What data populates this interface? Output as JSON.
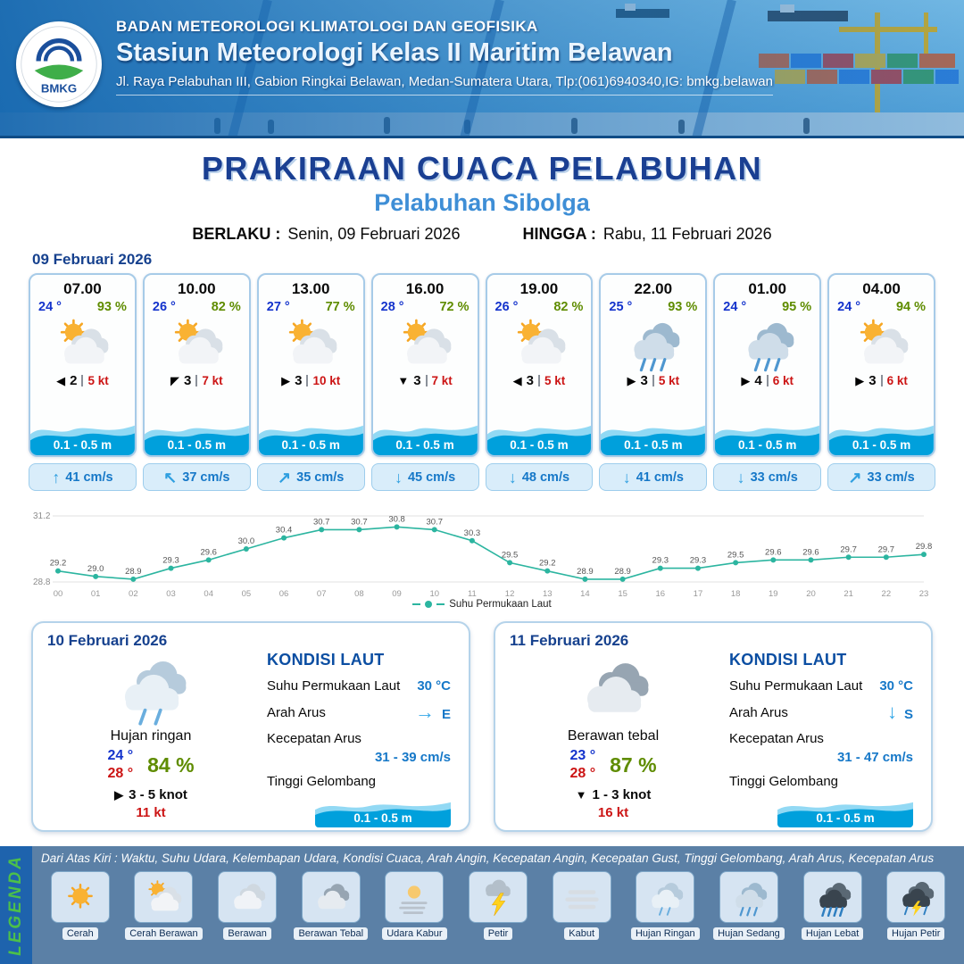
{
  "header": {
    "logo_label": "BMKG",
    "org": "BADAN METEOROLOGI KLIMATOLOGI DAN GEOFISIKA",
    "station": "Stasiun Meteorologi Kelas II Maritim Belawan",
    "address": "Jl. Raya Pelabuhan III, Gabion Ringkai Belawan, Medan-Sumatera Utara, Tlp:(061)6940340,IG: bmkg.belawan"
  },
  "title": {
    "main": "PRAKIRAAN CUACA PELABUHAN",
    "port": "Pelabuhan Sibolga",
    "berlaku_label": "BERLAKU :",
    "berlaku_value": "Senin, 09 Februari 2026",
    "hingga_label": "HINGGA :",
    "hingga_value": "Rabu, 11 Februari 2026"
  },
  "forecast": {
    "date": "09 Februari 2026",
    "cards": [
      {
        "time": "07.00",
        "temp": "24 °",
        "humidity": "93 %",
        "icon": "cerah-berawan",
        "wind_arrow": "◀",
        "wind_speed": "2",
        "gust": "5 kt",
        "wave": "0.1 - 0.5 m",
        "current_arrow": "↑",
        "current": "41 cm/s"
      },
      {
        "time": "10.00",
        "temp": "26 °",
        "humidity": "82 %",
        "icon": "cerah-berawan",
        "wind_arrow": "◤",
        "wind_speed": "3",
        "gust": "7 kt",
        "wave": "0.1 - 0.5 m",
        "current_arrow": "↖",
        "current": "37 cm/s"
      },
      {
        "time": "13.00",
        "temp": "27 °",
        "humidity": "77 %",
        "icon": "cerah-berawan",
        "wind_arrow": "▶",
        "wind_speed": "3",
        "gust": "10 kt",
        "wave": "0.1 - 0.5 m",
        "current_arrow": "↗",
        "current": "35 cm/s"
      },
      {
        "time": "16.00",
        "temp": "28 °",
        "humidity": "72 %",
        "icon": "cerah-berawan",
        "wind_arrow": "▼",
        "wind_speed": "3",
        "gust": "7 kt",
        "wave": "0.1 - 0.5 m",
        "current_arrow": "↓",
        "current": "45 cm/s"
      },
      {
        "time": "19.00",
        "temp": "26 °",
        "humidity": "82 %",
        "icon": "cerah-berawan",
        "wind_arrow": "◀",
        "wind_speed": "3",
        "gust": "5 kt",
        "wave": "0.1 - 0.5 m",
        "current_arrow": "↓",
        "current": "48 cm/s"
      },
      {
        "time": "22.00",
        "temp": "25 °",
        "humidity": "93 %",
        "icon": "hujan-sedang",
        "wind_arrow": "▶",
        "wind_speed": "3",
        "gust": "5 kt",
        "wave": "0.1 - 0.5 m",
        "current_arrow": "↓",
        "current": "41 cm/s"
      },
      {
        "time": "01.00",
        "temp": "24 °",
        "humidity": "95 %",
        "icon": "hujan-sedang",
        "wind_arrow": "▶",
        "wind_speed": "4",
        "gust": "6 kt",
        "wave": "0.1 - 0.5 m",
        "current_arrow": "↓",
        "current": "33 cm/s"
      },
      {
        "time": "04.00",
        "temp": "24 °",
        "humidity": "94 %",
        "icon": "cerah-berawan",
        "wind_arrow": "▶",
        "wind_speed": "3",
        "gust": "6 kt",
        "wave": "0.1 - 0.5 m",
        "current_arrow": "↗",
        "current": "33 cm/s"
      }
    ]
  },
  "chart_data": {
    "type": "line",
    "x": [
      "00",
      "01",
      "02",
      "03",
      "04",
      "05",
      "06",
      "07",
      "08",
      "09",
      "10",
      "11",
      "12",
      "13",
      "14",
      "15",
      "16",
      "17",
      "18",
      "19",
      "20",
      "21",
      "22",
      "23"
    ],
    "series": [
      {
        "name": "Suhu Permukaan Laut",
        "values": [
          29.2,
          29.0,
          28.9,
          29.3,
          29.6,
          30.0,
          30.4,
          30.7,
          30.7,
          30.8,
          30.7,
          30.3,
          29.5,
          29.2,
          28.9,
          28.9,
          29.3,
          29.3,
          29.5,
          29.6,
          29.6,
          29.7,
          29.7,
          29.8
        ]
      }
    ],
    "ylim": [
      28.8,
      31.2
    ],
    "line_color": "#2cb5a0",
    "grid": true,
    "legend_position": "bottom"
  },
  "day_cards": [
    {
      "date": "10 Februari 2026",
      "icon": "hujan-ringan",
      "condition": "Hujan ringan",
      "temp_min": "24 °",
      "temp_max": "28 °",
      "humidity": "84 %",
      "wind_arrow": "▶",
      "wind": "3 - 5 knot",
      "gust": "11 kt",
      "sea": {
        "title": "KONDISI LAUT",
        "sst_label": "Suhu Permukaan Laut",
        "sst": "30 °C",
        "dir_label": "Arah Arus",
        "dir_arrow": "→",
        "dir": "E",
        "speed_label": "Kecepatan Arus",
        "speed": "31 - 39 cm/s",
        "wave_label": "Tinggi Gelombang",
        "wave": "0.1 - 0.5 m"
      }
    },
    {
      "date": "11 Februari 2026",
      "icon": "berawan-tebal",
      "condition": "Berawan tebal",
      "temp_min": "23 °",
      "temp_max": "28 °",
      "humidity": "87 %",
      "wind_arrow": "▼",
      "wind": "1 - 3 knot",
      "gust": "16 kt",
      "sea": {
        "title": "KONDISI LAUT",
        "sst_label": "Suhu Permukaan Laut",
        "sst": "30 °C",
        "dir_label": "Arah Arus",
        "dir_arrow": "↓",
        "dir": "S",
        "speed_label": "Kecepatan Arus",
        "speed": "31 - 47 cm/s",
        "wave_label": "Tinggi Gelombang",
        "wave": "0.1 - 0.5 m"
      }
    }
  ],
  "legend": {
    "vertical_label": "LEGENDA",
    "description": "Dari Atas Kiri : Waktu, Suhu Udara, Kelembapan Udara, Kondisi Cuaca, Arah Angin, Kecepatan Angin, Kecepatan Gust, Tinggi Gelombang, Arah Arus, Kecepatan Arus",
    "items": [
      {
        "label": "Cerah",
        "icon": "cerah"
      },
      {
        "label": "Cerah Berawan",
        "icon": "cerah-berawan"
      },
      {
        "label": "Berawan",
        "icon": "berawan"
      },
      {
        "label": "Berawan Tebal",
        "icon": "berawan-tebal"
      },
      {
        "label": "Udara Kabur",
        "icon": "udara-kabur"
      },
      {
        "label": "Petir",
        "icon": "petir"
      },
      {
        "label": "Kabut",
        "icon": "kabut"
      },
      {
        "label": "Hujan Ringan",
        "icon": "hujan-ringan"
      },
      {
        "label": "Hujan Sedang",
        "icon": "hujan-sedang"
      },
      {
        "label": "Hujan Lebat",
        "icon": "hujan-lebat"
      },
      {
        "label": "Hujan Petir",
        "icon": "hujan-petir"
      }
    ]
  }
}
